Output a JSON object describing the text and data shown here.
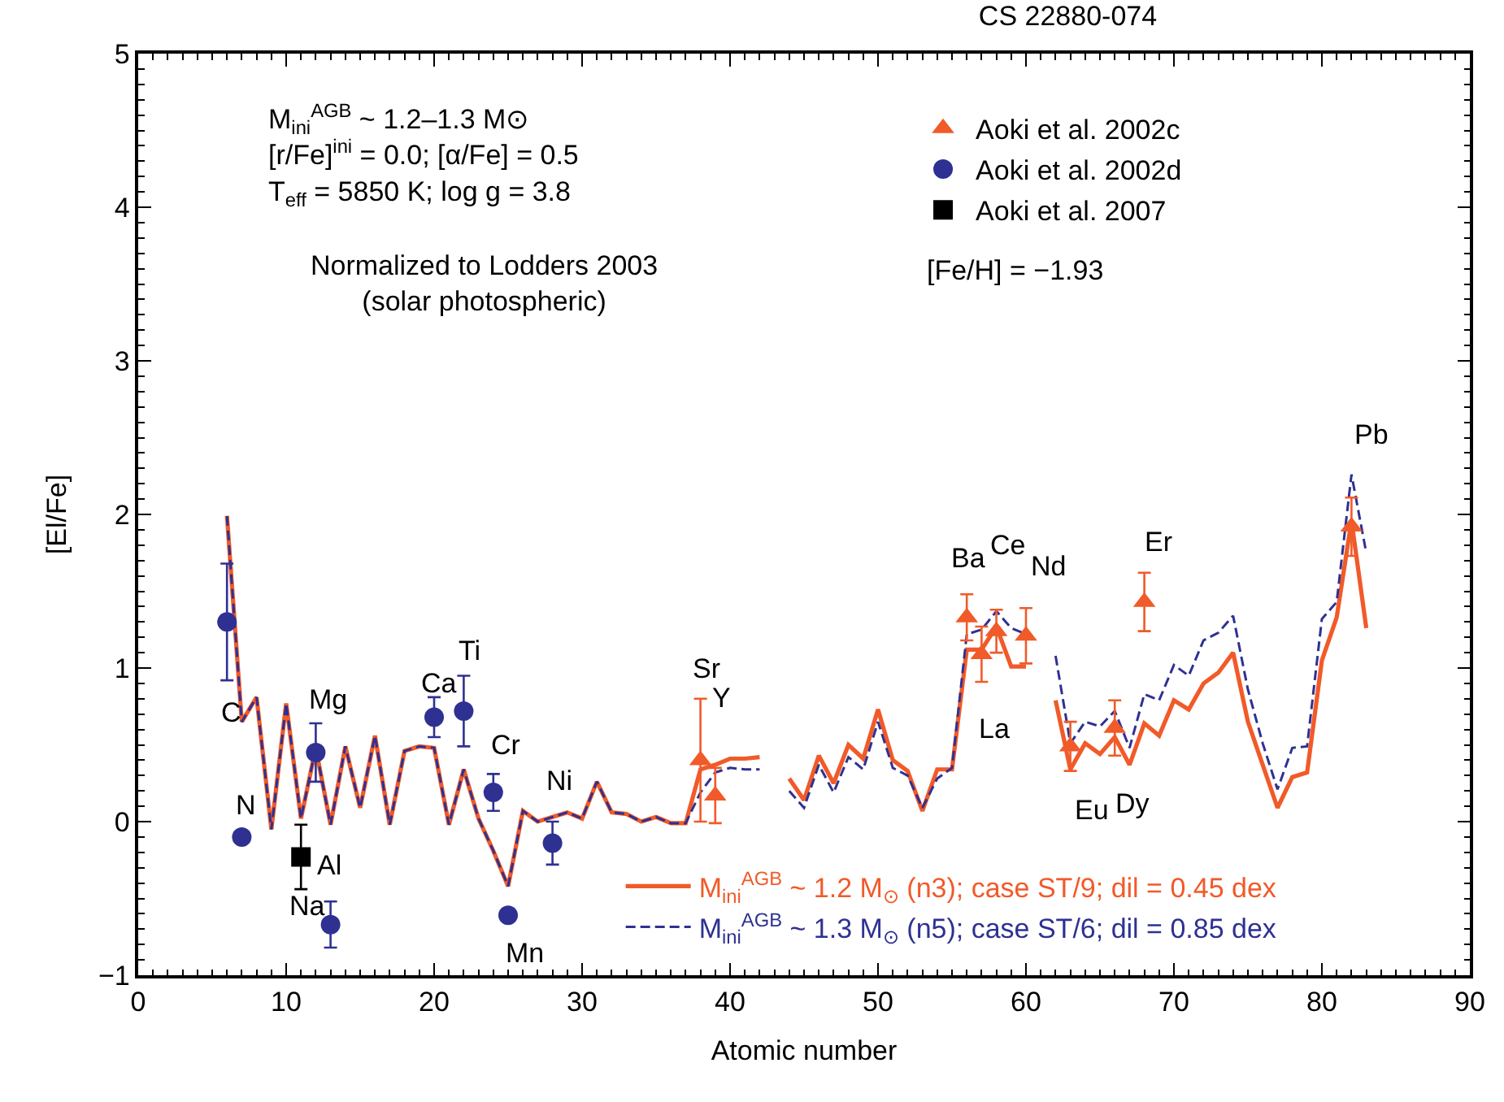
{
  "chart_data": {
    "type": "line",
    "title": "CS 22880-074",
    "xlabel": "Atomic number",
    "ylabel": "[El/Fe]",
    "xlim": [
      0,
      90
    ],
    "xticks": [
      0,
      10,
      20,
      30,
      40,
      50,
      60,
      70,
      80,
      90
    ],
    "ylim": [
      -1,
      5
    ],
    "yticks": [
      -1,
      0,
      1,
      2,
      3,
      4,
      5
    ],
    "legend": "right",
    "series": [
      {
        "name": "M$_{ini}$$^{AGB}$ ~ 1.2 M$_{⊙}$ (n3); case ST/9; dil = 0.45 dex",
        "color": "#f15a29",
        "line_style": "solid",
        "marker": "none",
        "x": [
          6,
          7,
          8,
          9,
          10,
          11,
          12,
          13,
          14,
          15,
          16,
          17,
          18,
          19,
          20,
          21,
          22,
          23,
          24,
          25,
          26,
          27,
          28,
          29,
          30,
          31,
          32,
          33,
          34,
          35,
          36,
          37,
          38,
          39,
          40,
          41,
          42,
          43,
          44,
          45,
          46,
          47,
          48,
          49,
          50,
          51,
          52,
          53,
          54,
          55,
          56,
          57,
          58,
          59,
          60,
          61,
          62,
          63,
          64,
          65,
          66,
          67,
          68,
          69,
          70,
          71,
          72,
          73,
          74,
          75,
          76,
          77,
          78,
          79,
          80,
          81,
          82,
          83
        ],
        "values": [
          1.99,
          0.65,
          0.81,
          -0.05,
          0.77,
          0.02,
          0.48,
          -0.02,
          0.49,
          0.09,
          0.56,
          -0.02,
          0.46,
          0.49,
          0.48,
          -0.02,
          0.34,
          0.02,
          -0.19,
          -0.42,
          0.07,
          0.0,
          0.03,
          0.06,
          0.02,
          0.26,
          0.06,
          0.05,
          0.0,
          0.03,
          -0.01,
          -0.01,
          0.34,
          0.37,
          0.41,
          0.41,
          0.42,
          null,
          0.28,
          0.14,
          0.43,
          0.25,
          0.5,
          0.41,
          0.73,
          0.4,
          0.33,
          0.07,
          0.34,
          0.34,
          1.12,
          1.12,
          1.27,
          1.01,
          1.01,
          null,
          0.79,
          0.34,
          0.51,
          0.44,
          0.55,
          0.37,
          0.64,
          0.56,
          0.79,
          0.73,
          0.9,
          0.97,
          1.1,
          0.65,
          0.37,
          0.09,
          0.29,
          0.32,
          1.05,
          1.33,
          1.96,
          1.26
        ]
      },
      {
        "name": "M$_{ini}$$^{AGB}$ ~ 1.3 M$_{⊙}$ (n5); case ST/6; dil = 0.85 dex",
        "color": "#2e3192",
        "line_style": "dashed",
        "marker": "none",
        "x": [
          6,
          7,
          8,
          9,
          10,
          11,
          12,
          13,
          14,
          15,
          16,
          17,
          18,
          19,
          20,
          21,
          22,
          23,
          24,
          25,
          26,
          27,
          28,
          29,
          30,
          31,
          32,
          33,
          34,
          35,
          36,
          37,
          38,
          39,
          40,
          41,
          42,
          43,
          44,
          45,
          46,
          47,
          48,
          49,
          50,
          51,
          52,
          53,
          54,
          55,
          56,
          57,
          58,
          59,
          60,
          61,
          62,
          63,
          64,
          65,
          66,
          67,
          68,
          69,
          70,
          71,
          72,
          73,
          74,
          75,
          76,
          77,
          78,
          79,
          80,
          81,
          82,
          83
        ],
        "values": [
          1.99,
          0.65,
          0.81,
          -0.05,
          0.77,
          0.02,
          0.48,
          -0.02,
          0.49,
          0.09,
          0.56,
          -0.02,
          0.46,
          0.49,
          0.48,
          -0.02,
          0.34,
          0.02,
          -0.19,
          -0.42,
          0.07,
          0.0,
          0.03,
          0.06,
          0.02,
          0.26,
          0.06,
          0.05,
          0.0,
          0.03,
          -0.01,
          -0.01,
          0.19,
          0.32,
          0.35,
          0.34,
          0.34,
          null,
          0.2,
          0.09,
          0.37,
          0.19,
          0.42,
          0.34,
          0.65,
          0.35,
          0.3,
          0.09,
          0.28,
          0.35,
          1.22,
          1.25,
          1.37,
          1.26,
          1.22,
          null,
          1.08,
          0.51,
          0.65,
          0.62,
          0.72,
          0.48,
          0.83,
          0.79,
          1.02,
          0.95,
          1.18,
          1.23,
          1.34,
          0.86,
          0.51,
          0.21,
          0.48,
          0.49,
          1.32,
          1.43,
          2.26,
          1.75
        ]
      },
      {
        "name": "Aoki et al. 2002c",
        "type": "scatter",
        "color": "#f15a29",
        "marker": "triangle",
        "x": [
          38,
          39,
          56,
          57,
          58,
          60,
          63,
          66,
          68,
          82
        ],
        "values": [
          0.4,
          0.17,
          1.33,
          1.09,
          1.24,
          1.21,
          0.49,
          0.61,
          1.43,
          1.92
        ],
        "errors": [
          0.4,
          0.18,
          0.15,
          0.18,
          0.14,
          0.18,
          0.16,
          0.18,
          0.19,
          0.19
        ]
      },
      {
        "name": "Aoki et al. 2002d",
        "type": "scatter",
        "color": "#2e3192",
        "marker": "circle",
        "x": [
          6,
          7,
          12,
          13,
          20,
          22,
          24,
          25,
          28
        ],
        "values": [
          1.3,
          -0.1,
          0.45,
          -0.67,
          0.68,
          0.72,
          0.19,
          -0.61,
          -0.14
        ],
        "errors": [
          0.38,
          null,
          0.19,
          0.15,
          0.13,
          0.23,
          0.12,
          null,
          0.14
        ]
      },
      {
        "name": "Aoki et al. 2007",
        "type": "scatter",
        "color": "#000000",
        "marker": "square",
        "x": [
          11
        ],
        "values": [
          -0.23
        ],
        "errors": [
          0.21
        ]
      }
    ],
    "annotations": [
      "M$_{ini}$$^{AGB}$ ~ 1.2–1.3 M⊙\n[r/Fe]$^{ini}$ = 0.0; [α/Fe] = 0.5\nT$_{eff}$ = 5850 K; log g = 3.8",
      "Normalized to Lodders 2003\n(solar photospheric)",
      "[Fe/H] = −1.93",
      "C",
      "N",
      "Mg",
      "Na",
      "Al",
      "Ca",
      "Ti",
      "Cr",
      "Mn",
      "Ni",
      "Sr",
      "Y",
      "Ba",
      "Ce",
      "Nd",
      "La",
      "Eu",
      "Dy",
      "Er",
      "Pb"
    ]
  }
}
